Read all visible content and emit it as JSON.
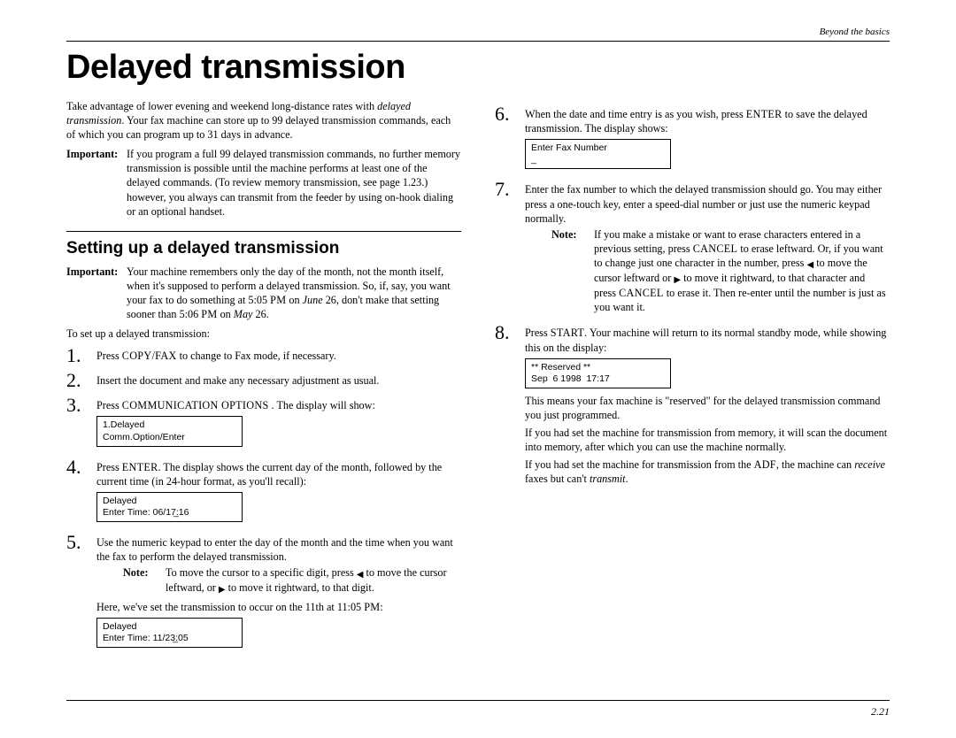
{
  "header": {
    "section_label": "Beyond the basics"
  },
  "title": "Delayed transmission",
  "intro": {
    "p1a": "Take advantage of lower evening and weekend long-distance rates with ",
    "p1_em": "delayed transmission",
    "p1b": ". Your fax machine can store up to 99 delayed transmission commands, each of which you can program up to 31 days in advance.",
    "imp_label": "Important:",
    "imp_text": "If you program a full 99 delayed transmission commands, no further memory transmission is possible until the machine performs at least one of the delayed commands. (To review memory transmission, see page 1.23.) however, you always can transmit from the feeder by using on-hook dialing or an optional handset."
  },
  "section1": {
    "heading": "Setting up a delayed transmission",
    "imp_label": "Important:",
    "imp_a": "Your machine remembers only the day of the month, not the month itself, when it's supposed to perform a delayed transmission. So, if, say, you want your fax to do something at 5:05 ",
    "imp_pm1": "PM",
    "imp_b": " on ",
    "imp_em1": "June",
    "imp_c": " 26, don't make that setting sooner than 5:06 ",
    "imp_pm2": "PM",
    "imp_d": " on ",
    "imp_em2": "May",
    "imp_e": " 26.",
    "lead": "To set up a delayed transmission:"
  },
  "steps": {
    "s1": {
      "n": "1.",
      "a": "Press ",
      "sc": "COPY/FAX",
      "b": " to change to Fax mode, if necessary."
    },
    "s2": {
      "n": "2.",
      "t": "Insert the document and make any necessary adjustment as usual."
    },
    "s3": {
      "n": "3.",
      "a": "Press ",
      "sc": "COMMUNICATION OPTIONS",
      "b": " . The display will show:",
      "disp": "1.Delayed\nComm.Option/Enter"
    },
    "s4": {
      "n": "4.",
      "a": "Press ",
      "sc": "ENTER",
      "b": ". The display shows the current day of the month, followed by the current time (in 24-hour format, as you'll recall):",
      "disp": "Delayed\nEnter Time: 06/17̲:16"
    },
    "s5": {
      "n": "5.",
      "t": "Use the numeric keypad to enter the day of the month and the time when you want the fax to perform the delayed transmission.",
      "note_label": "Note:",
      "note_a": "To move the cursor to a specific digit, press ",
      "note_b": " to move the cursor leftward, or ",
      "note_c": " to move it rightward, to that digit.",
      "after_a": "Here, we've set the transmission to occur on the 11th at 11:05 ",
      "after_pm": "PM",
      "after_b": ":",
      "disp": "Delayed\nEnter Time: 11/23̲:05"
    },
    "s6": {
      "n": "6.",
      "a": "When the date and time entry is as you wish, press ",
      "sc": "ENTER",
      "b": " to save the delayed transmission. The display shows:",
      "disp": "Enter Fax Number\n_"
    },
    "s7": {
      "n": "7.",
      "t": "Enter the fax number to which the delayed transmission should go. You may either press a one-touch key, enter a speed-dial number or just use the numeric keypad normally.",
      "note_label": "Note:",
      "note_a": "If you make a mistake or want to erase characters entered in a previous setting, press ",
      "note_sc1": "CANCEL",
      "note_b": " to erase leftward. Or, if you want to change just one character in the number, press ",
      "note_c": " to move the cursor leftward or ",
      "note_d": " to move it rightward, to that character and press ",
      "note_sc2": "CANCEL",
      "note_e": " to erase it. Then re-enter until the number is just as you want it."
    },
    "s8": {
      "n": "8.",
      "a": "Press ",
      "sc": "START",
      "b": ". Your machine will return to its normal standby mode, while showing this on the display:",
      "disp": "** Reserved **\nSep  6 1998  17:17",
      "p1": "This means your fax machine is \"reserved\" for the delayed transmission command you just programmed.",
      "p2": "If you had set the machine for transmission from memory, it will scan the document into memory, after which you can use the machine normally.",
      "p3a": "If you had set the machine for transmission from the ",
      "p3_sc": "ADF",
      "p3b": ", the machine can ",
      "p3_em1": "receive",
      "p3c": " faxes but can't ",
      "p3_em2": "transmit",
      "p3d": "."
    }
  },
  "page_number": "2.21"
}
